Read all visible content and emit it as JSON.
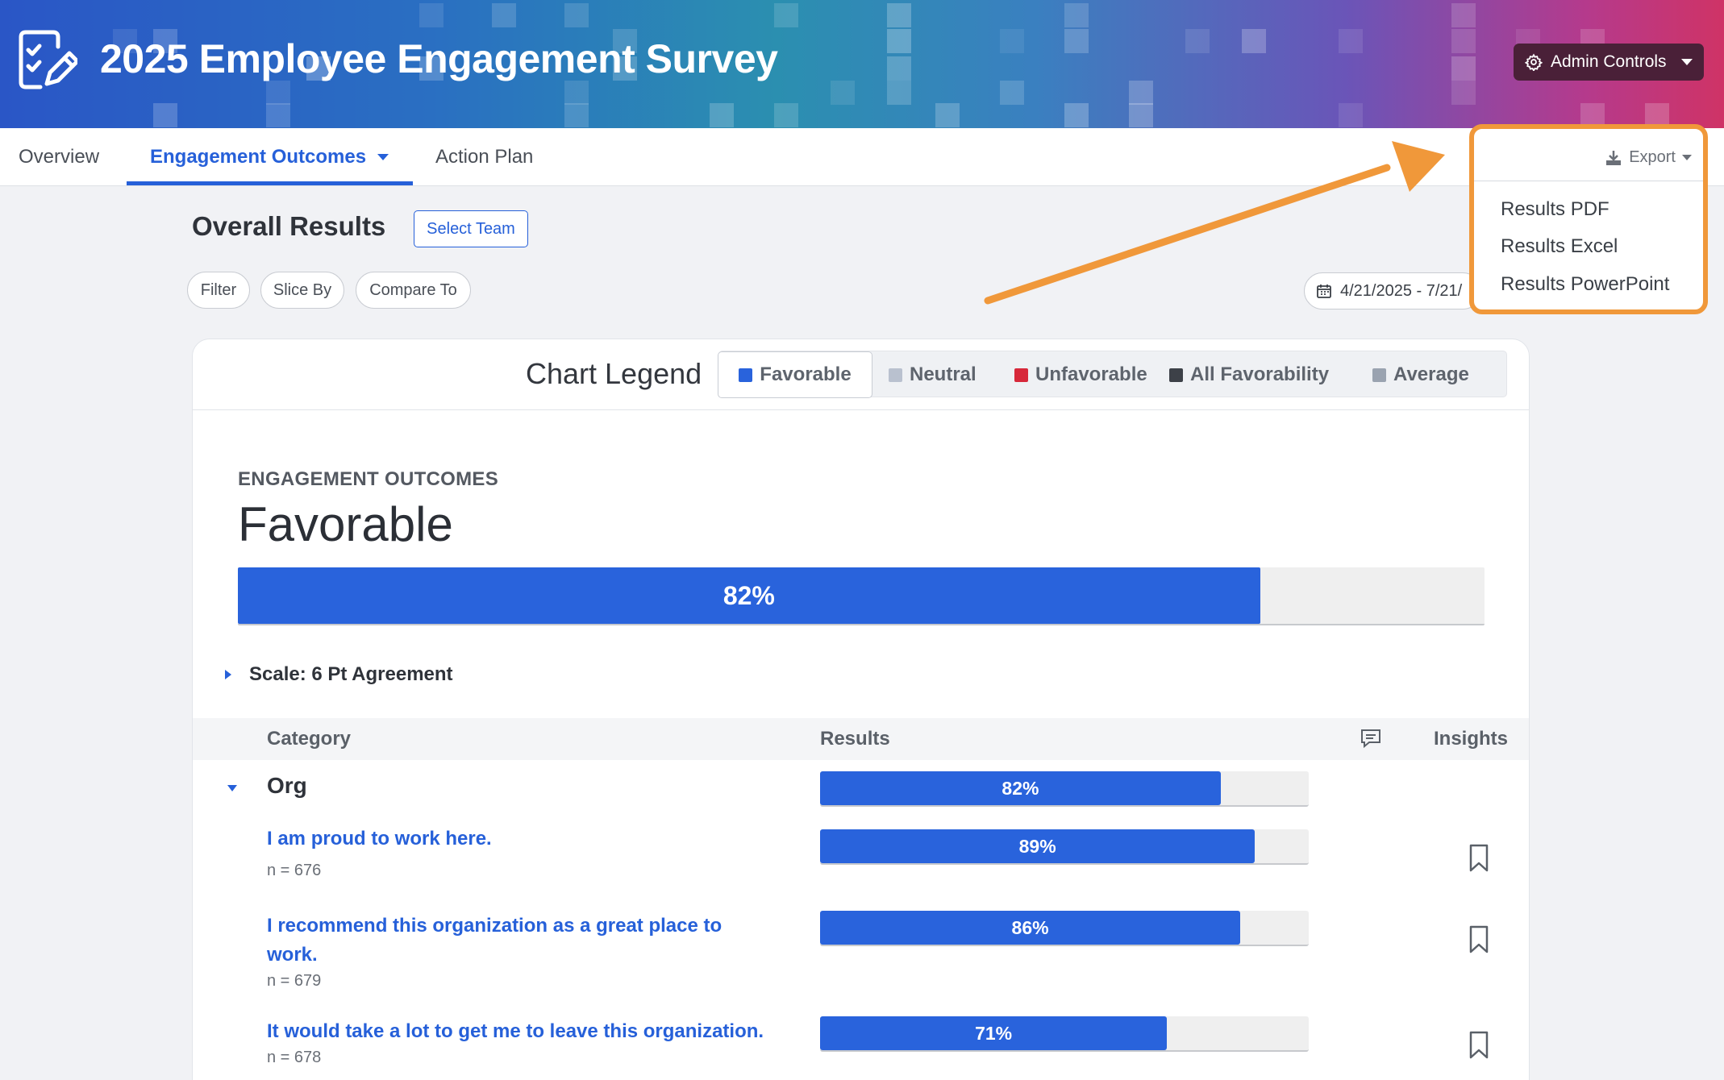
{
  "header": {
    "title": "2025 Employee Engagement Survey",
    "admin_label": "Admin Controls",
    "colors": {
      "gradient_start": "#2a56c6",
      "gradient_end": "#cf3366",
      "admin_bg": "#4a2038"
    }
  },
  "tabs": [
    {
      "label": "Overview",
      "active": false
    },
    {
      "label": "Engagement Outcomes",
      "active": true
    },
    {
      "label": "Action Plan",
      "active": false
    }
  ],
  "toolbar": {
    "title": "Overall Results",
    "select_team": "Select Team",
    "filter": "Filter",
    "slice_by": "Slice By",
    "compare_to": "Compare To",
    "date_range": "4/21/2025 - 7/21/"
  },
  "export": {
    "label": "Export",
    "items": [
      "Results PDF",
      "Results Excel",
      "Results PowerPoint"
    ],
    "highlight_color": "#f0983a"
  },
  "legend": {
    "title": "Chart Legend",
    "items": [
      {
        "label": "Favorable",
        "color": "#2963dc",
        "selected": true
      },
      {
        "label": "Neutral",
        "color": "#b9c1cf",
        "selected": false
      },
      {
        "label": "Unfavorable",
        "color": "#d7283a",
        "selected": false
      },
      {
        "label": "All Favorability",
        "color": "#3d4148",
        "selected": false
      },
      {
        "label": "Average",
        "color": "#9aa3b0",
        "selected": false
      }
    ]
  },
  "summary": {
    "kicker": "ENGAGEMENT OUTCOMES",
    "heading": "Favorable",
    "value_label": "82%",
    "value": 0.82
  },
  "scale": {
    "label": "Scale: 6 Pt Agreement"
  },
  "table": {
    "headers": {
      "category": "Category",
      "results": "Results",
      "insights": "Insights"
    },
    "group": {
      "label": "Org",
      "value_label": "82%",
      "value": 0.82
    },
    "rows": [
      {
        "label": "I am proud to work here.",
        "n": "n = 676",
        "value_label": "89%",
        "value": 0.89
      },
      {
        "label": "I recommend this organization as a great place to work.",
        "n": "n = 679",
        "value_label": "86%",
        "value": 0.86
      },
      {
        "label": "It would take a lot to get me to leave this organization.",
        "n": "n = 678",
        "value_label": "71%",
        "value": 0.71
      }
    ]
  }
}
